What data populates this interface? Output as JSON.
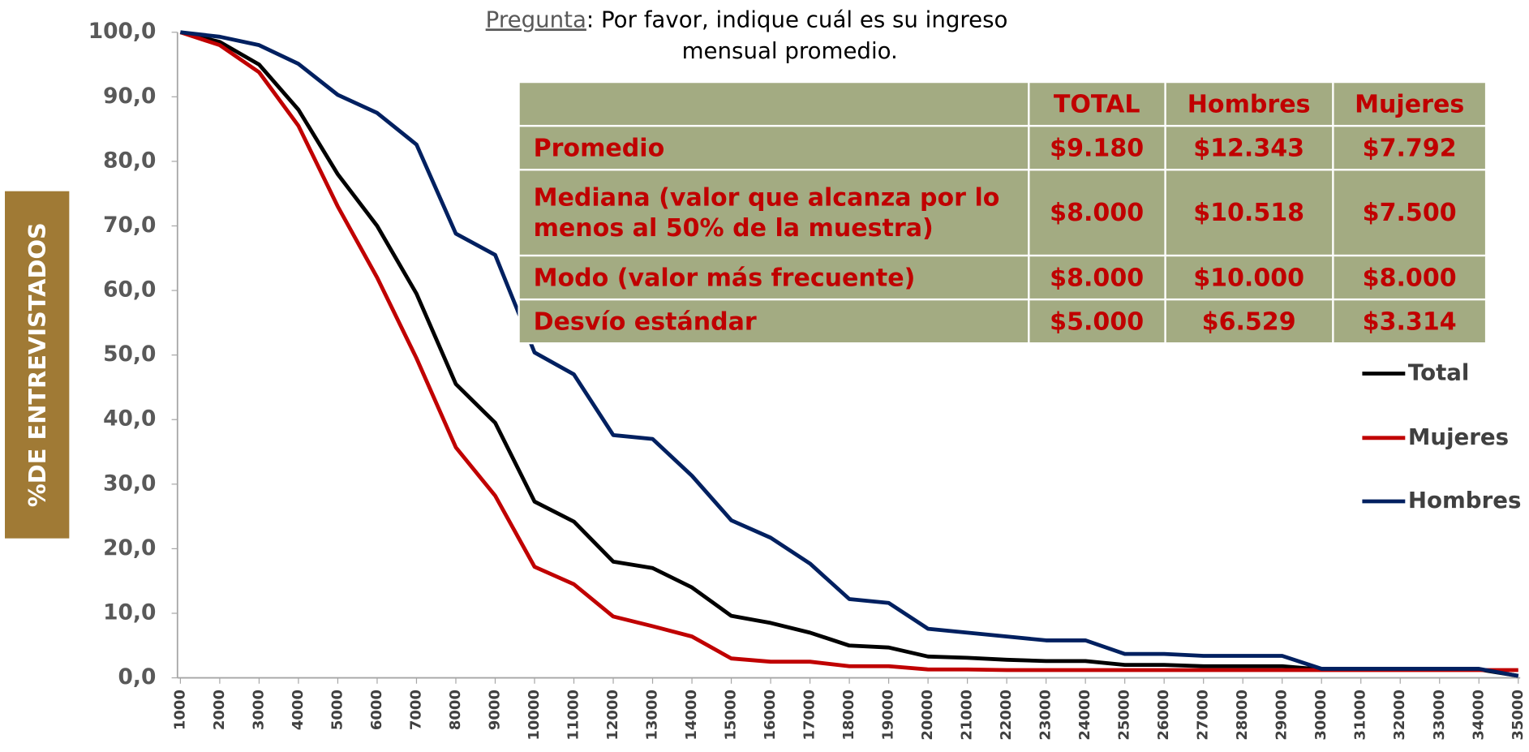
{
  "chart_data": {
    "type": "line",
    "question_label": "Pregunta",
    "question_line1": ": Por favor, indique cuál es su ingreso",
    "question_line2": "mensual promedio.",
    "y_label": "%DE ENTREVISTADOS",
    "categories": [
      "1000",
      "2000",
      "3000",
      "4000",
      "5000",
      "6000",
      "7000",
      "8000",
      "9000",
      "10000",
      "11000",
      "12000",
      "13000",
      "14000",
      "15000",
      "16000",
      "17000",
      "18000",
      "19000",
      "20000",
      "21000",
      "22000",
      "23000",
      "24000",
      "25000",
      "26000",
      "27000",
      "28000",
      "29000",
      "30000",
      "31000",
      "32000",
      "33000",
      "34000",
      "35000"
    ],
    "series": [
      {
        "name": "Total",
        "color": "#000000",
        "values": [
          100,
          98.5,
          95,
          88,
          78,
          70,
          59.5,
          45.5,
          39.5,
          27.3,
          24.2,
          18,
          17,
          14,
          9.6,
          8.5,
          7,
          5,
          4.7,
          3.3,
          3.1,
          2.8,
          2.6,
          2.6,
          2,
          2,
          1.8,
          1.8,
          1.8,
          1.3,
          1.3,
          1.3,
          1.3,
          1.3,
          0.3
        ]
      },
      {
        "name": "Mujeres",
        "color": "#c00000",
        "values": [
          100,
          98,
          93.8,
          85.5,
          73,
          62,
          49.5,
          35.7,
          28.2,
          17.2,
          14.5,
          9.5,
          8,
          6.4,
          3,
          2.5,
          2.5,
          1.8,
          1.8,
          1.3,
          1.3,
          1.2,
          1.2,
          1.2,
          1.2,
          1.2,
          1.2,
          1.2,
          1.2,
          1.2,
          1.2,
          1.2,
          1.2,
          1.2,
          1.2
        ]
      },
      {
        "name": "Hombres",
        "color": "#002060",
        "values": [
          100,
          99.3,
          98,
          95.1,
          90.3,
          87.5,
          82.6,
          68.8,
          65.5,
          50.4,
          47,
          37.6,
          37,
          31.3,
          24.4,
          21.7,
          17.7,
          12.2,
          11.6,
          7.6,
          7,
          6.4,
          5.8,
          5.8,
          3.7,
          3.7,
          3.4,
          3.4,
          3.4,
          1.4,
          1.4,
          1.4,
          1.4,
          1.4,
          0.3
        ]
      }
    ],
    "ylim": [
      0,
      100
    ],
    "yticks": [
      {
        "value": 0,
        "label": "0,0"
      },
      {
        "value": 10,
        "label": "10,0"
      },
      {
        "value": 20,
        "label": "20,0"
      },
      {
        "value": 30,
        "label": "30,0"
      },
      {
        "value": 40,
        "label": "40,0"
      },
      {
        "value": 50,
        "label": "50,0"
      },
      {
        "value": 60,
        "label": "60,0"
      },
      {
        "value": 70,
        "label": "70,0"
      },
      {
        "value": 80,
        "label": "80,0"
      },
      {
        "value": 90,
        "label": "90,0"
      },
      {
        "value": 100,
        "label": "100,0"
      }
    ],
    "grid": false,
    "legend": "right"
  },
  "table": {
    "header": [
      "TOTAL",
      "Hombres",
      "Mujeres"
    ],
    "rows": [
      [
        "Promedio",
        "$9.180",
        "$12.343",
        "$7.792"
      ],
      [
        "Mediana (valor que alcanza por lo menos al 50% de la muestra)",
        "$8.000",
        "$10.518",
        "$7.500"
      ],
      [
        "Modo (valor más frecuente)",
        "$8.000",
        "$10.000",
        "$8.000"
      ],
      [
        "Desvío estándar",
        "$5.000",
        "$6.529",
        "$3.314"
      ]
    ]
  }
}
